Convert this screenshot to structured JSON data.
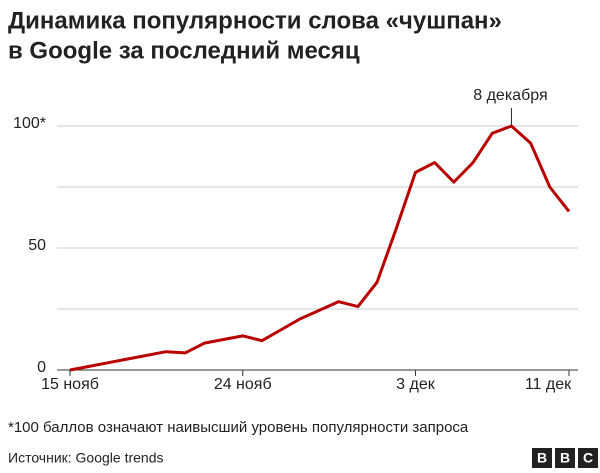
{
  "chart_data": {
    "type": "line",
    "title": [
      "Динамика популярности слова «чушпан»",
      "в Google за последний месяц"
    ],
    "categories": [
      "15 нояб",
      null,
      null,
      null,
      null,
      null,
      null,
      null,
      null,
      "24 нояб",
      null,
      null,
      null,
      null,
      null,
      null,
      null,
      null,
      "3 дек",
      null,
      null,
      null,
      null,
      null,
      null,
      null,
      "11 дек"
    ],
    "series": [
      {
        "name": "чушпан",
        "color": "#b80000",
        "values": [
          0,
          1.5,
          3,
          4.5,
          6,
          7.5,
          7,
          11,
          12.5,
          14,
          12,
          16.5,
          21,
          24.5,
          28,
          26,
          36,
          58,
          81,
          85,
          77,
          85,
          97,
          100,
          93,
          75,
          65
        ]
      }
    ],
    "ylim": [
      0,
      100
    ],
    "yticks": [
      0,
      50,
      {
        "value": 100,
        "label": "100*"
      }
    ],
    "ygrid": [
      0,
      25,
      50,
      75,
      100
    ],
    "grid": true,
    "annotations": [
      {
        "index": 23,
        "text": "8 декабря"
      }
    ],
    "footnote": "*100 баллов означают наивысший уровень популярности запроса",
    "source": "Источник: Google trends",
    "logo": [
      "B",
      "B",
      "C"
    ]
  }
}
